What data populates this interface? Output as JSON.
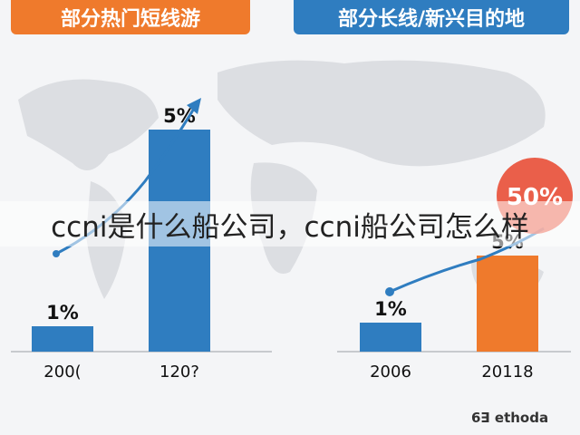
{
  "headers": {
    "left": "部分热门短线游",
    "right": "部分长线/新兴目的地"
  },
  "overlay_title": "ccni是什么船公司，ccni船公司怎么样",
  "watermark": "6∃ ethoda",
  "colors": {
    "blue": "#2f7dc0",
    "orange": "#ef7a2c",
    "red": "#e8442c"
  },
  "chart_data": [
    {
      "type": "bar",
      "title": "部分热门短线游",
      "categories": [
        "200(",
        "120?"
      ],
      "values": [
        1,
        5
      ],
      "data_labels": [
        "1%",
        "5%"
      ],
      "color": "#2f7dc0",
      "ylim": [
        0,
        5.5
      ]
    },
    {
      "type": "bar",
      "title": "部分长线/新兴目的地",
      "categories": [
        "2006",
        "20118"
      ],
      "values": [
        1,
        5
      ],
      "data_labels": [
        "1%",
        "5%"
      ],
      "bar_colors": [
        "#2f7dc0",
        "#ef7a2c"
      ],
      "callout": "50%",
      "ylim": [
        0,
        5.5
      ]
    }
  ]
}
